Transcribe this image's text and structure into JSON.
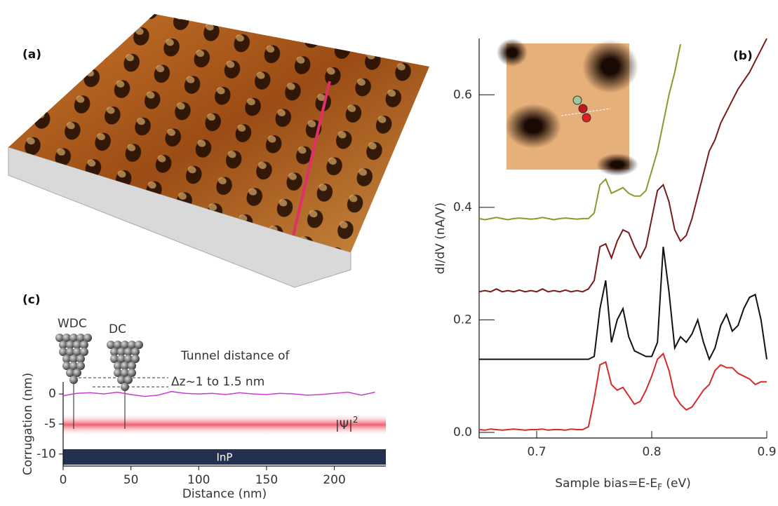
{
  "panel_a": {
    "label": "(a)"
  },
  "chart_data": [
    {
      "type": "line",
      "label": "(b)",
      "x_label": [
        "Sample bias=E-E",
        "F",
        " (eV)"
      ],
      "y_label": "dI/dV (nA/V)",
      "xlim": [
        0.65,
        0.9
      ],
      "ylim": [
        -0.01,
        0.7
      ],
      "xticks": [
        0.7,
        0.8,
        0.9
      ],
      "yticks": [
        {
          "value": 0,
          "label": "0.0"
        },
        0.2,
        0.4,
        0.6
      ],
      "x": [
        0.65,
        0.655,
        0.66,
        0.665,
        0.67,
        0.675,
        0.68,
        0.685,
        0.69,
        0.695,
        0.7,
        0.705,
        0.71,
        0.715,
        0.72,
        0.725,
        0.73,
        0.735,
        0.74,
        0.745,
        0.75,
        0.755,
        0.76,
        0.765,
        0.77,
        0.775,
        0.78,
        0.785,
        0.79,
        0.795,
        0.8,
        0.805,
        0.81,
        0.815,
        0.82,
        0.825,
        0.83,
        0.835,
        0.84,
        0.845,
        0.85,
        0.855,
        0.86,
        0.865,
        0.87,
        0.875,
        0.88,
        0.885,
        0.89,
        0.895,
        0.9
      ],
      "series": [
        {
          "color": "#d42a2a",
          "values": [
            0.005,
            0.004,
            0.006,
            0.005,
            0.004,
            0.005,
            0.006,
            0.005,
            0.004,
            0.005,
            0.005,
            0.006,
            0.004,
            0.005,
            0.005,
            0.004,
            0.006,
            0.005,
            0.005,
            0.01,
            0.06,
            0.12,
            0.125,
            0.085,
            0.075,
            0.08,
            0.065,
            0.05,
            0.055,
            0.075,
            0.1,
            0.13,
            0.14,
            0.11,
            0.065,
            0.05,
            0.04,
            0.045,
            0.06,
            0.075,
            0.085,
            0.11,
            0.12,
            0.115,
            0.115,
            0.105,
            0.1,
            0.095,
            0.085,
            0.09,
            0.09
          ]
        },
        {
          "color": "#111111",
          "values": [
            0.13,
            0.13,
            0.13,
            0.13,
            0.13,
            0.13,
            0.13,
            0.13,
            0.13,
            0.13,
            0.13,
            0.13,
            0.13,
            0.13,
            0.13,
            0.13,
            0.13,
            0.13,
            0.13,
            0.13,
            0.135,
            0.22,
            0.27,
            0.16,
            0.2,
            0.22,
            0.17,
            0.145,
            0.14,
            0.135,
            0.135,
            0.16,
            0.33,
            0.25,
            0.15,
            0.17,
            0.16,
            0.175,
            0.2,
            0.16,
            0.13,
            0.15,
            0.19,
            0.21,
            0.18,
            0.19,
            0.22,
            0.24,
            0.245,
            0.2,
            0.13
          ]
        },
        {
          "color": "#7a1a1a",
          "values": [
            0.25,
            0.252,
            0.25,
            0.255,
            0.25,
            0.252,
            0.25,
            0.253,
            0.25,
            0.252,
            0.25,
            0.255,
            0.25,
            0.252,
            0.25,
            0.253,
            0.25,
            0.252,
            0.25,
            0.255,
            0.27,
            0.33,
            0.335,
            0.31,
            0.34,
            0.36,
            0.355,
            0.33,
            0.31,
            0.33,
            0.38,
            0.43,
            0.44,
            0.41,
            0.36,
            0.34,
            0.35,
            0.38,
            0.42,
            0.46,
            0.5,
            0.52,
            0.55,
            0.57,
            0.59,
            0.61,
            0.625,
            0.64,
            0.66,
            0.68,
            0.7
          ]
        },
        {
          "color": "#8a9a2a",
          "values": [
            0.38,
            0.378,
            0.38,
            0.382,
            0.38,
            0.378,
            0.38,
            0.381,
            0.38,
            0.379,
            0.38,
            0.382,
            0.38,
            0.378,
            0.38,
            0.381,
            0.38,
            0.379,
            0.38,
            0.38,
            0.39,
            0.44,
            0.45,
            0.425,
            0.43,
            0.435,
            0.425,
            0.42,
            0.42,
            0.43,
            0.465,
            0.5,
            0.55,
            0.6,
            0.64,
            0.69,
            null,
            null,
            null,
            null,
            null,
            null,
            null,
            null,
            null,
            null,
            null,
            null,
            null,
            null,
            null
          ]
        }
      ]
    },
    {
      "type": "line",
      "label": "(c)",
      "x_label": "Distance (nm)",
      "y_label": "Corrugation (nm)",
      "xlim": [
        0,
        238
      ],
      "ylim": [
        -12,
        2
      ],
      "xticks": [
        0,
        50,
        100,
        150,
        200
      ],
      "yticks": [
        0,
        -5,
        -10
      ],
      "x": [
        0,
        10,
        20,
        30,
        40,
        50,
        60,
        70,
        80,
        90,
        100,
        110,
        120,
        130,
        140,
        150,
        160,
        170,
        180,
        190,
        200,
        210,
        220,
        230
      ],
      "series": [
        {
          "color": "#c83cd2",
          "values": [
            -0.3,
            0.1,
            0.2,
            0,
            0.3,
            -0.1,
            -0.4,
            -0.2,
            0.4,
            0.1,
            0,
            0.1,
            -0.1,
            0.2,
            0,
            -0.1,
            0.1,
            0,
            -0.2,
            -0.1,
            0.1,
            0.3,
            -0.2,
            0.3
          ]
        }
      ],
      "annotations": {
        "wdc": "WDC",
        "dc": "DC",
        "tunnel": "Tunnel distance of",
        "dz": "Δz~1 to 1.5 nm",
        "psi": "|Ψ|",
        "psi_exp": "2",
        "substrate": "InP"
      }
    }
  ]
}
